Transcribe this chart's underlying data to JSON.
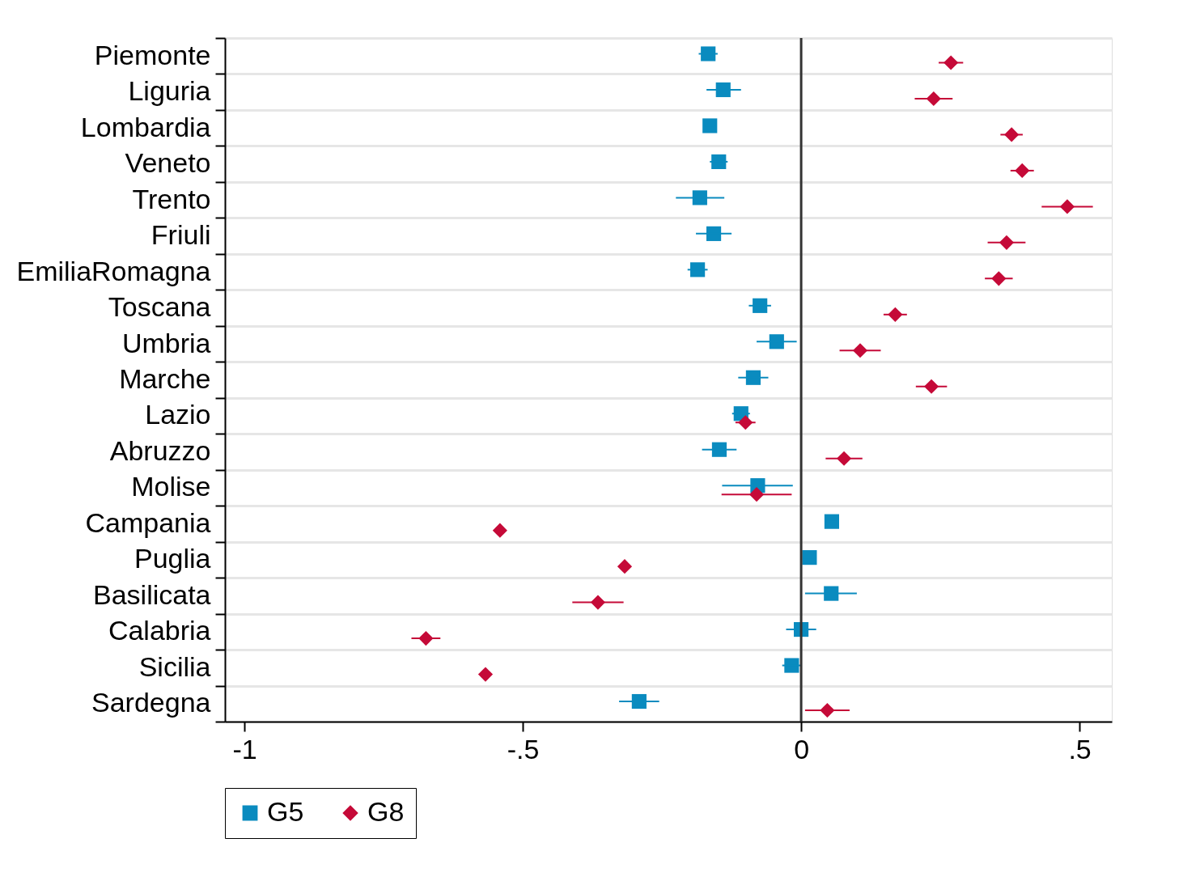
{
  "chart_data": {
    "type": "scatter",
    "orientation": "horizontal",
    "categories": [
      "Piemonte",
      "Liguria",
      "Lombardia",
      "Veneto",
      "Trento",
      "Friuli",
      "EmiliaRomagna",
      "Toscana",
      "Umbria",
      "Marche",
      "Lazio",
      "Abruzzo",
      "Molise",
      "Campania",
      "Puglia",
      "Basilicata",
      "Calabria",
      "Sicilia",
      "Sardegna"
    ],
    "series": [
      {
        "name": "G5",
        "color": "#0a8bbf",
        "marker": "square",
        "values": [
          -0.167,
          -0.14,
          -0.164,
          -0.148,
          -0.182,
          -0.157,
          -0.186,
          -0.074,
          -0.044,
          -0.086,
          -0.108,
          -0.147,
          -0.078,
          0.055,
          0.015,
          0.054,
          0.0,
          -0.017,
          -0.291
        ],
        "errors": [
          0.017,
          [
            -0.17,
            -0.108
          ],
          0.008,
          0.016,
          [
            -0.225,
            -0.138
          ],
          0.032,
          0.018,
          0.02,
          0.036,
          0.027,
          0.016,
          0.031,
          [
            -0.142,
            -0.015
          ],
          0.01,
          0.012,
          [
            0.007,
            0.1
          ],
          0.027,
          0.017,
          0.036
        ]
      },
      {
        "name": "G8",
        "color": "#c50a38",
        "marker": "diamond",
        "values": [
          0.269,
          0.238,
          0.378,
          0.397,
          0.478,
          0.369,
          0.355,
          0.169,
          0.106,
          0.234,
          -0.1,
          0.077,
          -0.08,
          -0.541,
          -0.317,
          -0.365,
          -0.674,
          -0.567,
          0.047
        ],
        "errors": [
          0.022,
          0.034,
          0.02,
          0.021,
          0.046,
          0.034,
          0.025,
          0.021,
          0.037,
          0.028,
          0.018,
          0.033,
          [
            -0.143,
            -0.017
          ],
          null,
          null,
          0.046,
          0.026,
          null,
          [
            0.007,
            0.087
          ]
        ]
      }
    ],
    "xlim": [
      -1.035,
      0.558
    ],
    "xticks": [
      {
        "value": -1,
        "label": "-1"
      },
      {
        "value": -0.5,
        "label": "-.5"
      },
      0,
      {
        "value": 0.5,
        "label": ".5"
      }
    ],
    "ref_lines": [
      {
        "axis": "x",
        "value": 0,
        "color": "#333333"
      }
    ],
    "grid": "y",
    "legend": "bottom"
  }
}
